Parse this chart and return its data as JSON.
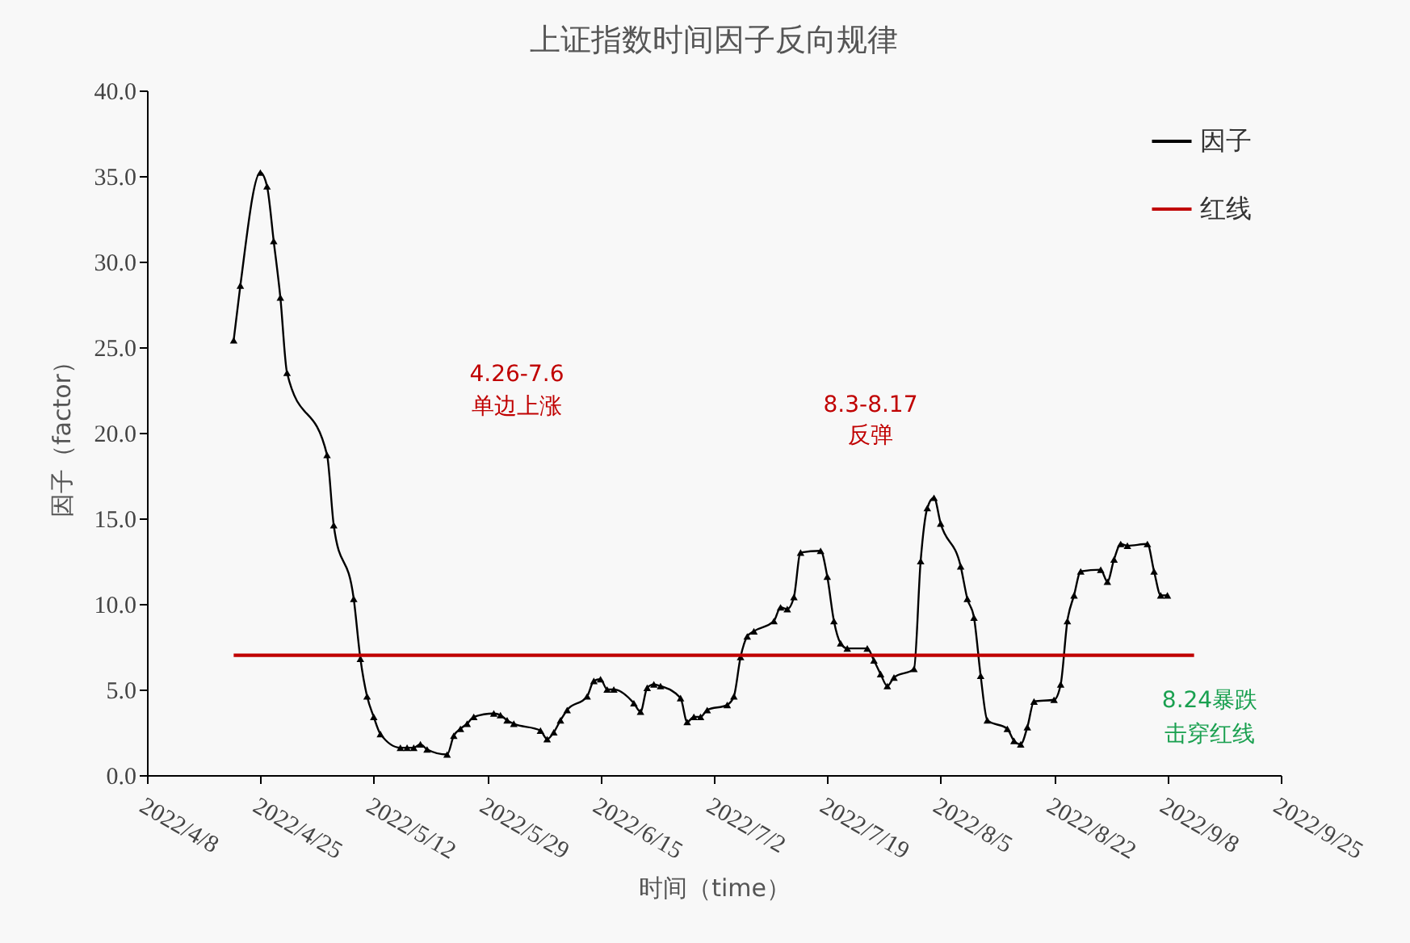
{
  "chart_data": {
    "type": "line",
    "title": "上证指数时间因子反向规律",
    "xlabel": "时间（time）",
    "ylabel": "因子（factor）",
    "xlim": [
      "2022-04-08",
      "2022-09-25"
    ],
    "xticks": [
      {
        "value": "2022-04-08",
        "label": "2022/4/8"
      },
      {
        "value": "2022-04-25",
        "label": "2022/4/25"
      },
      {
        "value": "2022-05-12",
        "label": "2022/5/12"
      },
      {
        "value": "2022-05-29",
        "label": "2022/5/29"
      },
      {
        "value": "2022-06-15",
        "label": "2022/6/15"
      },
      {
        "value": "2022-07-02",
        "label": "2022/7/2"
      },
      {
        "value": "2022-07-19",
        "label": "2022/7/19"
      },
      {
        "value": "2022-08-05",
        "label": "2022/8/5"
      },
      {
        "value": "2022-08-22",
        "label": "2022/8/22"
      },
      {
        "value": "2022-09-08",
        "label": "2022/9/8"
      },
      {
        "value": "2022-09-25",
        "label": "2022/9/25"
      }
    ],
    "ylim": [
      0,
      40
    ],
    "yticks": [
      {
        "value": 0,
        "label": "0.0"
      },
      {
        "value": 5,
        "label": "5.0"
      },
      {
        "value": 10,
        "label": "10.0"
      },
      {
        "value": 15,
        "label": "15.0"
      },
      {
        "value": 20,
        "label": "20.0"
      },
      {
        "value": 25,
        "label": "25.0"
      },
      {
        "value": 30,
        "label": "30.0"
      },
      {
        "value": 35,
        "label": "35.0"
      },
      {
        "value": 40,
        "label": "40.0"
      }
    ],
    "grid": false,
    "legend": "top right",
    "line_style": "solid",
    "series": [
      {
        "name": "因子",
        "color": "#000000",
        "marker": "triangle",
        "x": [
          "2022-04-21",
          "2022-04-22",
          "2022-04-25",
          "2022-04-26",
          "2022-04-27",
          "2022-04-28",
          "2022-04-29",
          "2022-05-05",
          "2022-05-06",
          "2022-05-09",
          "2022-05-10",
          "2022-05-11",
          "2022-05-12",
          "2022-05-13",
          "2022-05-16",
          "2022-05-17",
          "2022-05-18",
          "2022-05-19",
          "2022-05-20",
          "2022-05-23",
          "2022-05-24",
          "2022-05-25",
          "2022-05-26",
          "2022-05-27",
          "2022-05-30",
          "2022-05-31",
          "2022-06-01",
          "2022-06-02",
          "2022-06-06",
          "2022-06-07",
          "2022-06-08",
          "2022-06-09",
          "2022-06-10",
          "2022-06-13",
          "2022-06-14",
          "2022-06-15",
          "2022-06-16",
          "2022-06-17",
          "2022-06-20",
          "2022-06-21",
          "2022-06-22",
          "2022-06-23",
          "2022-06-24",
          "2022-06-27",
          "2022-06-28",
          "2022-06-29",
          "2022-06-30",
          "2022-07-01",
          "2022-07-04",
          "2022-07-05",
          "2022-07-06",
          "2022-07-07",
          "2022-07-08",
          "2022-07-11",
          "2022-07-12",
          "2022-07-13",
          "2022-07-14",
          "2022-07-15",
          "2022-07-18",
          "2022-07-19",
          "2022-07-20",
          "2022-07-21",
          "2022-07-22",
          "2022-07-25",
          "2022-07-26",
          "2022-07-27",
          "2022-07-28",
          "2022-07-29",
          "2022-08-01",
          "2022-08-02",
          "2022-08-03",
          "2022-08-04",
          "2022-08-05",
          "2022-08-08",
          "2022-08-09",
          "2022-08-10",
          "2022-08-11",
          "2022-08-12",
          "2022-08-15",
          "2022-08-16",
          "2022-08-17",
          "2022-08-18",
          "2022-08-19",
          "2022-08-22",
          "2022-08-23",
          "2022-08-24",
          "2022-08-25",
          "2022-08-26",
          "2022-08-29",
          "2022-08-30",
          "2022-08-31",
          "2022-09-01",
          "2022-09-02",
          "2022-09-05",
          "2022-09-06",
          "2022-09-07",
          "2022-09-08"
        ],
        "values": [
          25.4,
          28.6,
          35.2,
          34.4,
          31.2,
          27.9,
          23.5,
          18.7,
          14.6,
          10.3,
          6.8,
          4.6,
          3.4,
          2.4,
          1.6,
          1.6,
          1.6,
          1.8,
          1.5,
          1.2,
          2.3,
          2.7,
          3.0,
          3.4,
          3.6,
          3.5,
          3.2,
          3.0,
          2.6,
          2.1,
          2.5,
          3.2,
          3.8,
          4.6,
          5.5,
          5.6,
          5.0,
          5.0,
          4.2,
          3.7,
          5.1,
          5.3,
          5.2,
          4.5,
          3.1,
          3.4,
          3.4,
          3.8,
          4.1,
          4.6,
          6.9,
          8.1,
          8.4,
          9.0,
          9.8,
          9.7,
          10.4,
          13.0,
          13.1,
          11.6,
          9.0,
          7.7,
          7.4,
          7.4,
          6.7,
          5.9,
          5.2,
          5.7,
          6.2,
          12.5,
          15.6,
          16.2,
          14.7,
          12.2,
          10.3,
          9.2,
          5.8,
          3.2,
          2.7,
          2.0,
          1.8,
          2.8,
          4.3,
          4.4,
          5.3,
          9.0,
          10.5,
          11.9,
          12.0,
          11.3,
          12.6,
          13.5,
          13.4,
          13.5,
          11.9,
          10.5,
          10.5
        ]
      },
      {
        "name": "红线",
        "color": "#c00000",
        "marker": "none",
        "x": [
          "2022-04-21",
          "2022-09-12"
        ],
        "values": [
          7.0,
          7.0
        ]
      }
    ],
    "annotations": [
      "4.26-7.6",
      "单边上涨",
      "8.3-8.17",
      "反弹",
      "8.24暴跌",
      "击穿红线"
    ]
  }
}
